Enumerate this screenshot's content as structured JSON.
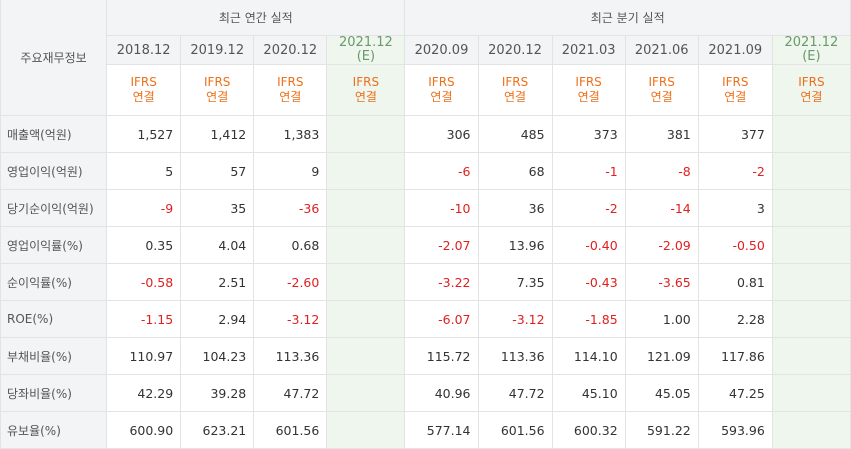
{
  "header": {
    "corner_label": "주요재무정보",
    "annual_group": "최근 연간 실적",
    "quarterly_group": "최근 분기 실적",
    "annual_periods": [
      {
        "label": "2018.12",
        "note": "",
        "estimate": false
      },
      {
        "label": "2019.12",
        "note": "",
        "estimate": false
      },
      {
        "label": "2020.12",
        "note": "",
        "estimate": false
      },
      {
        "label": "2021.12",
        "note": "(E)",
        "estimate": true
      }
    ],
    "quarterly_periods": [
      {
        "label": "2020.09",
        "note": "",
        "estimate": false
      },
      {
        "label": "2020.12",
        "note": "",
        "estimate": false
      },
      {
        "label": "2021.03",
        "note": "",
        "estimate": false
      },
      {
        "label": "2021.06",
        "note": "",
        "estimate": false
      },
      {
        "label": "2021.09",
        "note": "",
        "estimate": false
      },
      {
        "label": "2021.12",
        "note": "(E)",
        "estimate": true
      }
    ],
    "ifrs_line1": "IFRS",
    "ifrs_line2": "연결"
  },
  "colors": {
    "negative": "#e02020",
    "ifrs": "#ee6f19",
    "estimate_bg": "#eef6ee",
    "header_bg": "#f3f4f6"
  },
  "rows": [
    {
      "label": "매출액(억원)",
      "annual": [
        "1,527",
        "1,412",
        "1,383",
        ""
      ],
      "quarterly": [
        "306",
        "485",
        "373",
        "381",
        "377",
        ""
      ]
    },
    {
      "label": "영업이익(억원)",
      "annual": [
        "5",
        "57",
        "9",
        ""
      ],
      "quarterly": [
        "-6",
        "68",
        "-1",
        "-8",
        "-2",
        ""
      ]
    },
    {
      "label": "당기순이익(억원)",
      "annual": [
        "-9",
        "35",
        "-36",
        ""
      ],
      "quarterly": [
        "-10",
        "36",
        "-2",
        "-14",
        "3",
        ""
      ]
    },
    {
      "label": "영업이익률(%)",
      "annual": [
        "0.35",
        "4.04",
        "0.68",
        ""
      ],
      "quarterly": [
        "-2.07",
        "13.96",
        "-0.40",
        "-2.09",
        "-0.50",
        ""
      ]
    },
    {
      "label": "순이익률(%)",
      "annual": [
        "-0.58",
        "2.51",
        "-2.60",
        ""
      ],
      "quarterly": [
        "-3.22",
        "7.35",
        "-0.43",
        "-3.65",
        "0.81",
        ""
      ]
    },
    {
      "label": "ROE(%)",
      "annual": [
        "-1.15",
        "2.94",
        "-3.12",
        ""
      ],
      "quarterly": [
        "-6.07",
        "-3.12",
        "-1.85",
        "1.00",
        "2.28",
        ""
      ]
    },
    {
      "label": "부채비율(%)",
      "annual": [
        "110.97",
        "104.23",
        "113.36",
        ""
      ],
      "quarterly": [
        "115.72",
        "113.36",
        "114.10",
        "121.09",
        "117.86",
        ""
      ]
    },
    {
      "label": "당좌비율(%)",
      "annual": [
        "42.29",
        "39.28",
        "47.72",
        ""
      ],
      "quarterly": [
        "40.96",
        "47.72",
        "45.10",
        "45.05",
        "47.25",
        ""
      ]
    },
    {
      "label": "유보율(%)",
      "annual": [
        "600.90",
        "623.21",
        "601.56",
        ""
      ],
      "quarterly": [
        "577.14",
        "601.56",
        "600.32",
        "591.22",
        "593.96",
        ""
      ]
    }
  ]
}
